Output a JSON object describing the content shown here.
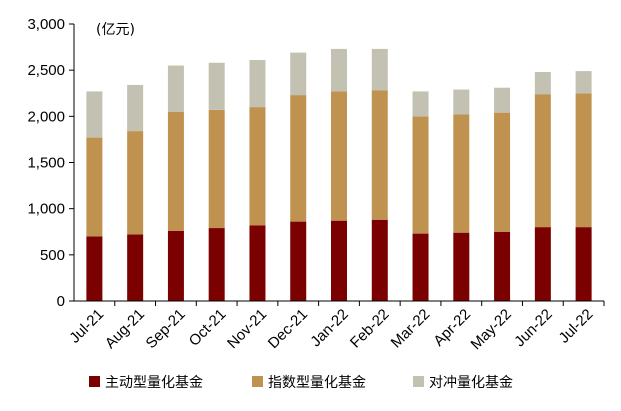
{
  "chart_data": {
    "type": "bar",
    "stacked": true,
    "categories": [
      "Jul-21",
      "Aug-21",
      "Sep-21",
      "Oct-21",
      "Nov-21",
      "Dec-21",
      "Jan-22",
      "Feb-22",
      "Mar-22",
      "Apr-22",
      "May-22",
      "Jun-22",
      "Jul-22"
    ],
    "series": [
      {
        "name": "主动型量化基金",
        "color": "#7b0000",
        "values": [
          700,
          720,
          760,
          790,
          820,
          860,
          870,
          880,
          730,
          740,
          750,
          800,
          800
        ]
      },
      {
        "name": "指数型量化基金",
        "color": "#c0924f",
        "values": [
          1070,
          1120,
          1290,
          1280,
          1280,
          1370,
          1400,
          1400,
          1270,
          1280,
          1290,
          1440,
          1450
        ]
      },
      {
        "name": "对冲量化基金",
        "color": "#c3c1b2",
        "values": [
          500,
          500,
          500,
          510,
          510,
          460,
          460,
          450,
          270,
          270,
          270,
          240,
          240
        ]
      }
    ],
    "unit_label": "(亿元)",
    "ylim": [
      0,
      3000
    ],
    "yticks": [
      0,
      500,
      1000,
      1500,
      2000,
      2500,
      3000
    ],
    "ytick_labels": [
      "0",
      "500",
      "1,000",
      "1,500",
      "2,000",
      "2,500",
      "3,000"
    ],
    "grid": false,
    "legend_position": "bottom",
    "title": "",
    "xlabel": "",
    "ylabel": ""
  }
}
